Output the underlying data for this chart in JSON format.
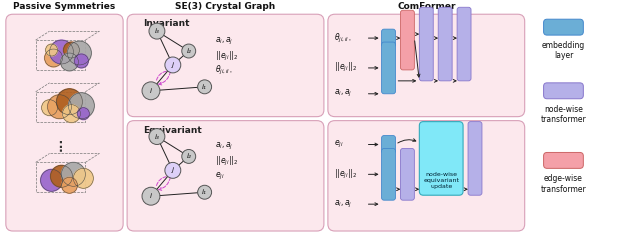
{
  "title_passive": "Passive Symmetries",
  "title_se3": "SE(3) Crystal Graph",
  "title_comformer": "ComFormer",
  "label_invariant": "Invariant",
  "label_equivariant": "Equivariant",
  "bg_pink": "#fce8ed",
  "color_embed_blue": "#6baed6",
  "color_node_purple": "#b5b0e8",
  "color_edge_red": "#f4a0a8",
  "color_cyan": "#80e8f8",
  "arrow_color": "#222222",
  "purple_arrow": "#cc44cc",
  "atom_orange": "#e8a060",
  "atom_brown": "#b06020",
  "atom_purple": "#9966cc",
  "atom_gray": "#a8a8a8",
  "atom_peach": "#f0c888",
  "legend_embedding": "embedding\nlayer",
  "legend_node": "node-wise\ntransformer",
  "legend_edge": "edge-wise\ntransformer",
  "node_update_text": "node-wise\nequivariant\nupdate"
}
